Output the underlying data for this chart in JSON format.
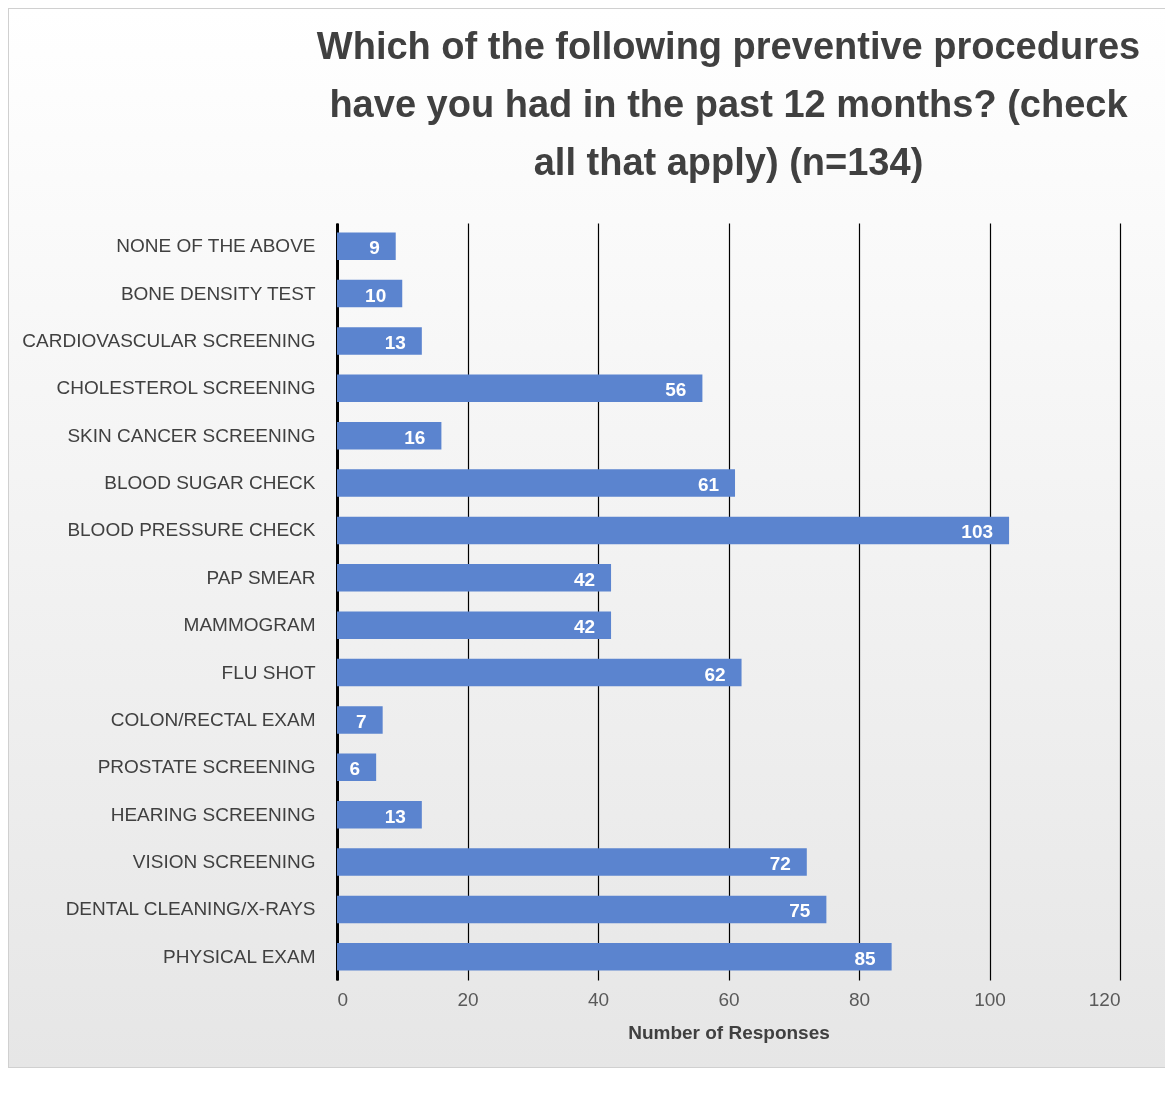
{
  "chart_data": {
    "type": "bar",
    "orientation": "horizontal",
    "title": "Which of the following preventive procedures have you had in the past 12 months? (check all that apply) (n=134)",
    "xlabel": "Number of Responses",
    "categories": [
      "NONE OF THE ABOVE",
      "BONE DENSITY TEST",
      "CARDIOVASCULAR SCREENING",
      "CHOLESTEROL SCREENING",
      "SKIN CANCER SCREENING",
      "BLOOD SUGAR CHECK",
      "BLOOD PRESSURE CHECK",
      "PAP SMEAR",
      "MAMMOGRAM",
      "FLU SHOT",
      "COLON/RECTAL EXAM",
      "PROSTATE SCREENING",
      "HEARING SCREENING",
      "VISION SCREENING",
      "DENTAL CLEANING/X-RAYS",
      "PHYSICAL EXAM"
    ],
    "values": [
      9,
      10,
      13,
      56,
      16,
      61,
      103,
      42,
      42,
      62,
      7,
      6,
      13,
      72,
      75,
      85
    ],
    "color": "#5b84cf",
    "xlim": [
      0,
      120
    ],
    "xticks": [
      0,
      20,
      40,
      60,
      80,
      100,
      120
    ],
    "grid": "x",
    "data_labels": true
  }
}
